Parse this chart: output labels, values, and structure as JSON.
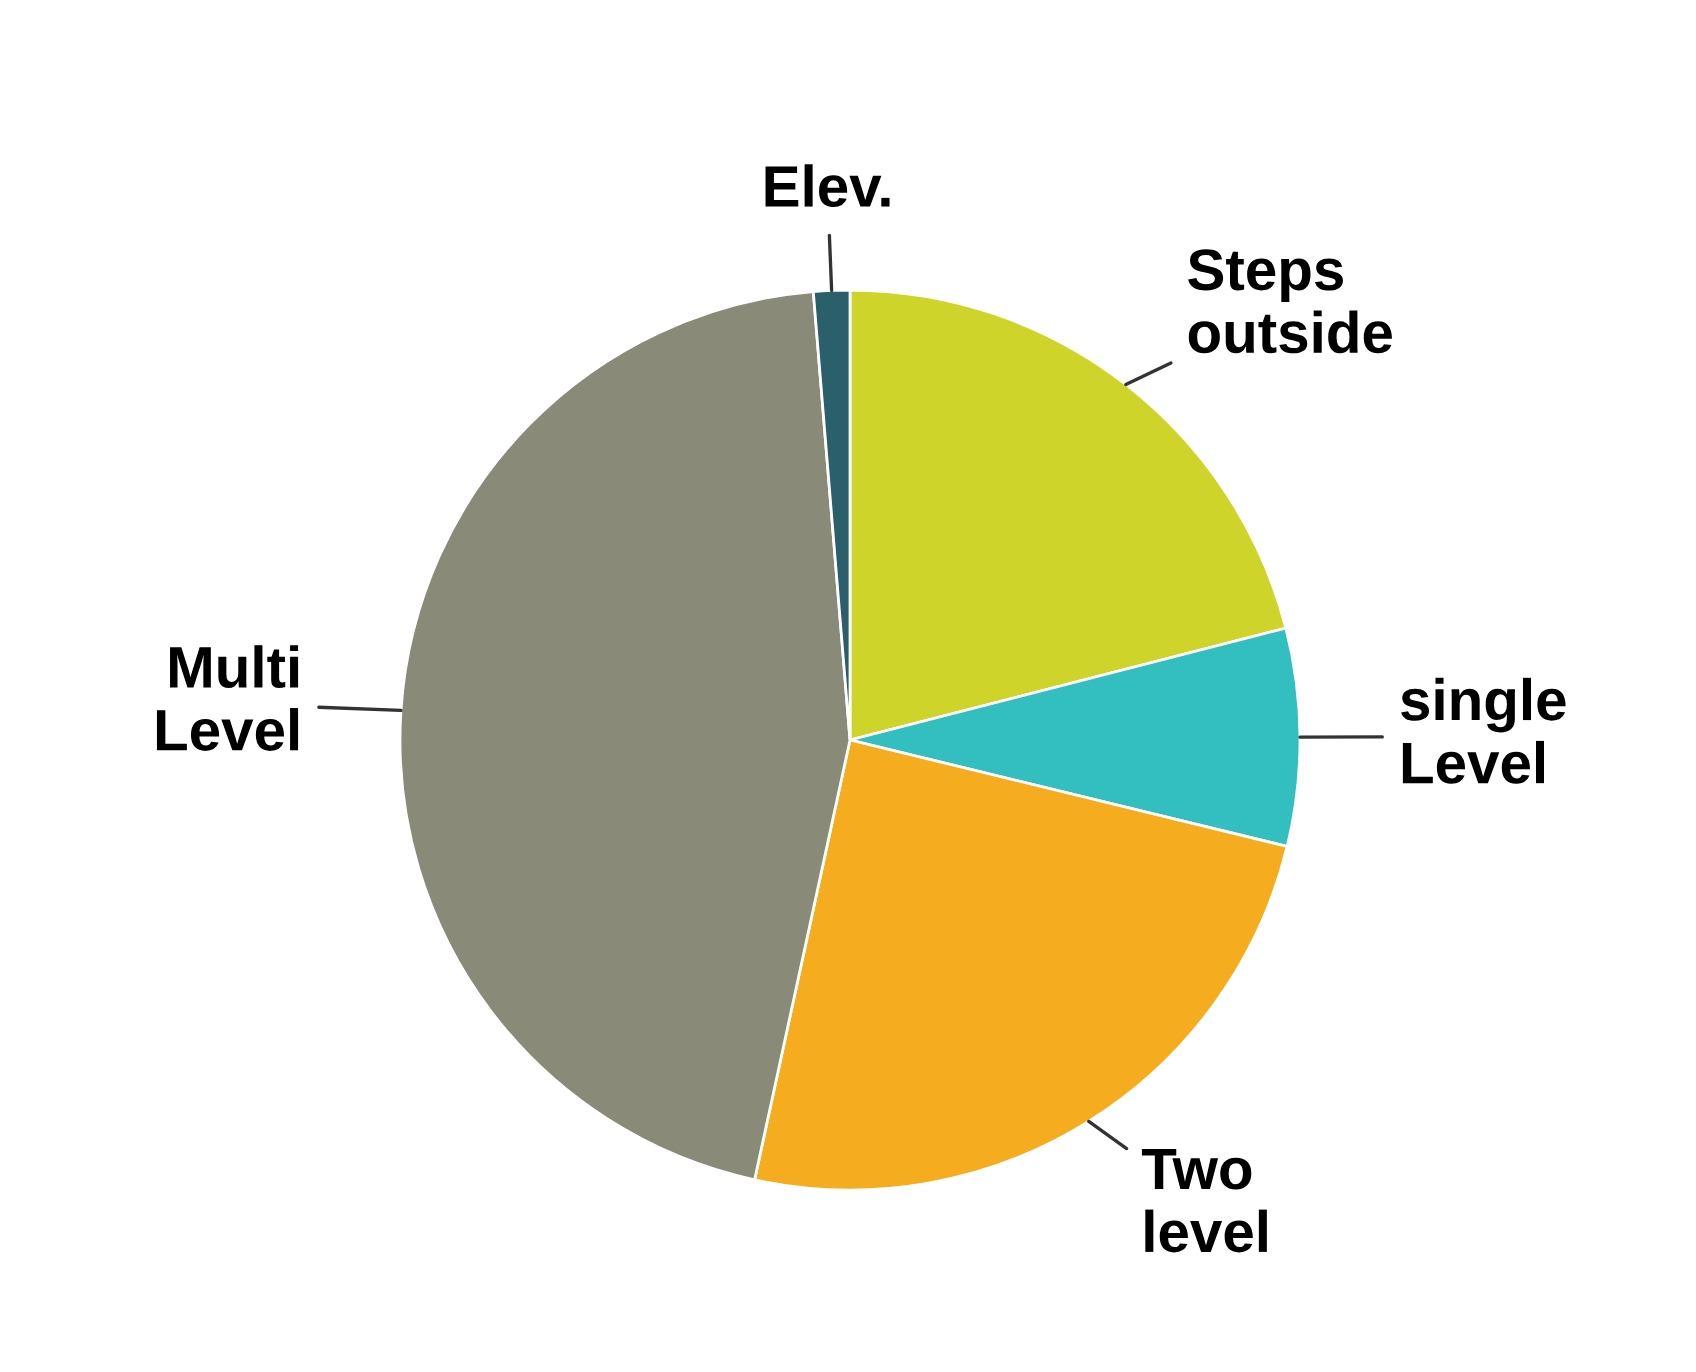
{
  "chart_data": {
    "type": "pie",
    "categories": [
      "Steps\noutside",
      "single\nLevel",
      "Two\nlevel",
      "Multi\nLevel",
      "Elev."
    ],
    "values": [
      21,
      7.8,
      24.6,
      45.3,
      1.3
    ],
    "colors": [
      "#cfd42a",
      "#33bfc0",
      "#f5ad1f",
      "#8a8a78",
      "#2a5f6b"
    ]
  }
}
